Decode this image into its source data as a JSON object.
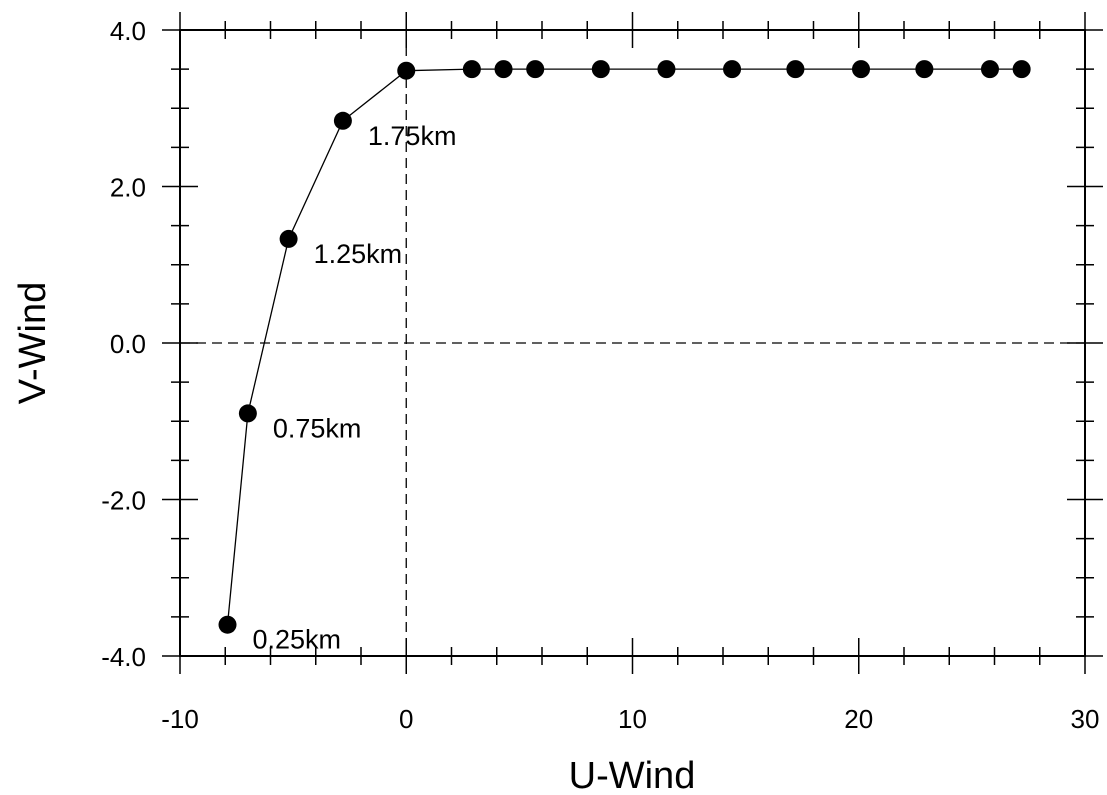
{
  "chart_data": {
    "type": "scatter",
    "title": "",
    "xlabel": "U-Wind",
    "ylabel": "V-Wind",
    "xlim": [
      -10,
      30
    ],
    "ylim": [
      -4.0,
      4.0
    ],
    "x_ticks": [
      -10,
      0,
      10,
      20,
      30
    ],
    "x_tick_labels": [
      "-10",
      "0",
      "10",
      "20",
      "30"
    ],
    "y_ticks": [
      -4.0,
      -2.0,
      0.0,
      2.0,
      4.0
    ],
    "y_tick_labels": [
      "-4.0",
      "-2.0",
      "0.0",
      "2.0",
      "4.0"
    ],
    "x_minor_step": 2,
    "y_minor_step": 0.5,
    "grid": false,
    "reference_lines": {
      "x": 0,
      "y": 0,
      "style": "dashed"
    },
    "connected": true,
    "marker": "filled-circle",
    "color": "#000000",
    "points": [
      {
        "x": -7.9,
        "y": -3.6
      },
      {
        "x": -7.0,
        "y": -0.9
      },
      {
        "x": -5.2,
        "y": 1.33
      },
      {
        "x": -2.8,
        "y": 2.84
      },
      {
        "x": 0.0,
        "y": 3.48
      },
      {
        "x": 2.9,
        "y": 3.5
      },
      {
        "x": 4.3,
        "y": 3.5
      },
      {
        "x": 5.7,
        "y": 3.5
      },
      {
        "x": 8.6,
        "y": 3.5
      },
      {
        "x": 11.5,
        "y": 3.5
      },
      {
        "x": 14.4,
        "y": 3.5
      },
      {
        "x": 17.2,
        "y": 3.5
      },
      {
        "x": 20.1,
        "y": 3.5
      },
      {
        "x": 22.9,
        "y": 3.5
      },
      {
        "x": 25.8,
        "y": 3.5
      },
      {
        "x": 27.2,
        "y": 3.5
      }
    ],
    "annotations": [
      {
        "text": "0.25km",
        "point_index": 0
      },
      {
        "text": "0.75km",
        "point_index": 1
      },
      {
        "text": "1.25km",
        "point_index": 2
      },
      {
        "text": "1.75km",
        "point_index": 3
      }
    ]
  }
}
